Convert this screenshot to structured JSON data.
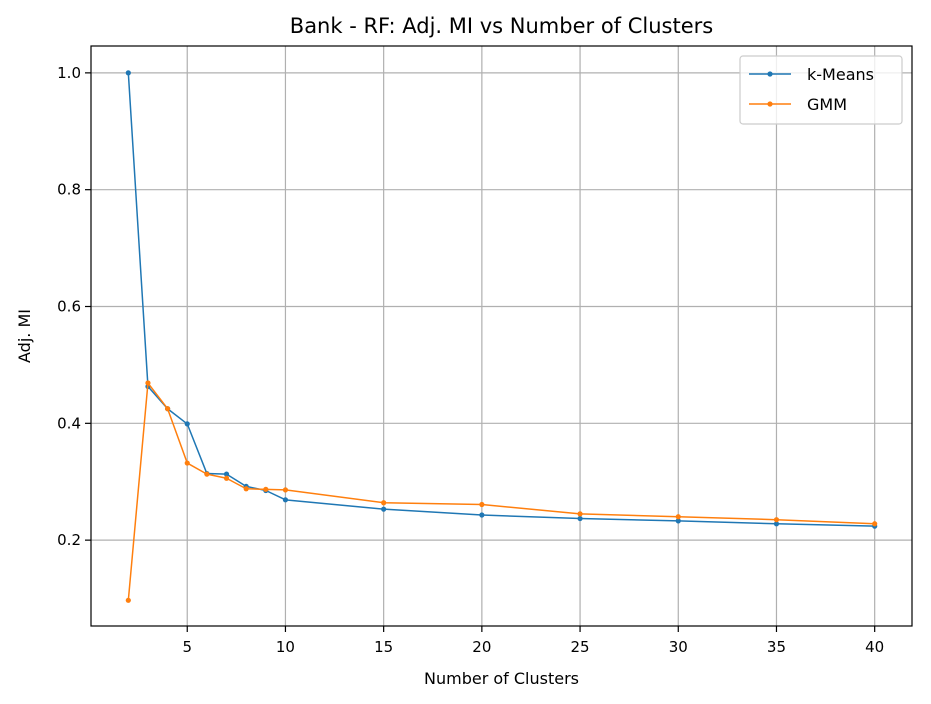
{
  "chart_data": {
    "type": "line",
    "title": "Bank - RF: Adj. MI vs Number of Clusters",
    "xlabel": "Number of Clusters",
    "ylabel": "Adj. MI",
    "xlim": [
      0.1,
      41.9
    ],
    "ylim": [
      0.053,
      1.046
    ],
    "xticks": [
      5,
      10,
      15,
      20,
      25,
      30,
      35,
      40
    ],
    "yticks": [
      0.2,
      0.4,
      0.6,
      0.8,
      1.0
    ],
    "ytick_labels": [
      "0.2",
      "0.4",
      "0.6",
      "0.8",
      "1.0"
    ],
    "grid": true,
    "legend_position": "top-right",
    "x": [
      2,
      3,
      4,
      5,
      6,
      7,
      8,
      9,
      10,
      15,
      20,
      25,
      30,
      35,
      40
    ],
    "series": [
      {
        "name": "k-Means",
        "color": "#1f77b4",
        "values": [
          1.0,
          0.463,
          0.425,
          0.399,
          0.314,
          0.313,
          0.292,
          0.285,
          0.269,
          0.253,
          0.243,
          0.237,
          0.233,
          0.228,
          0.224
        ]
      },
      {
        "name": "GMM",
        "color": "#ff7f0e",
        "values": [
          0.097,
          0.469,
          0.425,
          0.332,
          0.313,
          0.306,
          0.288,
          0.287,
          0.286,
          0.264,
          0.261,
          0.245,
          0.24,
          0.235,
          0.228
        ]
      }
    ]
  }
}
